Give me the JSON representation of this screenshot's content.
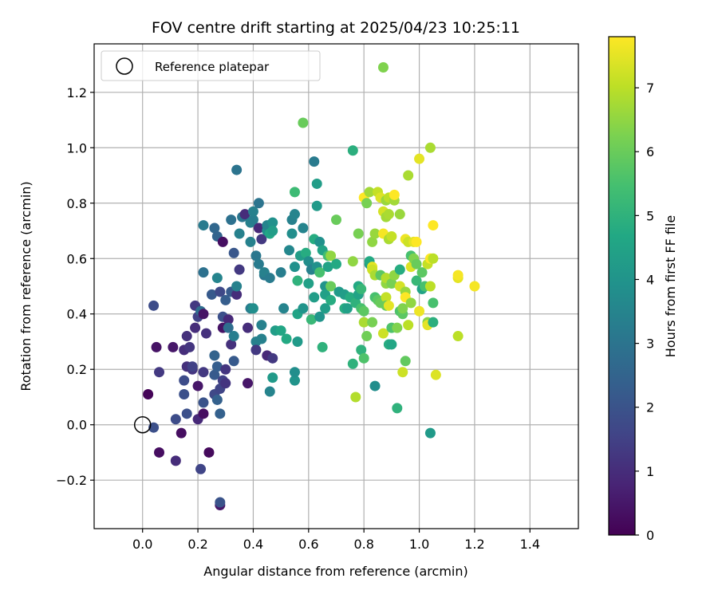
{
  "chart_data": {
    "type": "scatter",
    "title": "FOV centre drift starting at 2025/04/23 10:25:11",
    "xlabel": "Angular distance from reference (arcmin)",
    "ylabel": "Rotation from reference (arcmin)",
    "xlim": [
      -0.175,
      1.575
    ],
    "ylim": [
      -0.375,
      1.375
    ],
    "xticks": [
      0.0,
      0.2,
      0.4,
      0.6,
      0.8,
      1.0,
      1.2,
      1.4
    ],
    "xtick_labels": [
      "0.0",
      "0.2",
      "0.4",
      "0.6",
      "0.8",
      "1.0",
      "1.2",
      "1.4"
    ],
    "yticks": [
      -0.2,
      0.0,
      0.2,
      0.4,
      0.6,
      0.8,
      1.0,
      1.2
    ],
    "ytick_labels": [
      "−0.2",
      "0.0",
      "0.2",
      "0.4",
      "0.6",
      "0.8",
      "1.0",
      "1.2"
    ],
    "grid": true,
    "legend": {
      "placement": "top-left",
      "entries": [
        "Reference platepar"
      ]
    },
    "reference_point": {
      "x": 0.0,
      "y": 0.0
    },
    "colorbar": {
      "label": "Hours from first FF file",
      "colormap": "viridis",
      "range": [
        0,
        7.8
      ],
      "ticks": [
        0,
        1,
        2,
        3,
        4,
        5,
        6,
        7
      ],
      "tick_labels": [
        "0",
        "1",
        "2",
        "3",
        "4",
        "5",
        "6",
        "7"
      ]
    },
    "points": [
      [
        0.02,
        0.11,
        0.1
      ],
      [
        0.04,
        -0.01,
        1.9
      ],
      [
        0.05,
        0.28,
        0.4
      ],
      [
        0.06,
        -0.1,
        0.3
      ],
      [
        0.06,
        0.19,
        1.3
      ],
      [
        0.04,
        0.43,
        1.8
      ],
      [
        0.11,
        0.28,
        0.5
      ],
      [
        0.12,
        0.02,
        1.8
      ],
      [
        0.12,
        -0.13,
        1.0
      ],
      [
        0.14,
        -0.03,
        0.3
      ],
      [
        0.15,
        0.16,
        1.8
      ],
      [
        0.15,
        0.11,
        1.9
      ],
      [
        0.15,
        0.27,
        1.0
      ],
      [
        0.16,
        0.04,
        1.9
      ],
      [
        0.16,
        0.21,
        1.1
      ],
      [
        0.16,
        0.32,
        1.1
      ],
      [
        0.17,
        0.28,
        1.2
      ],
      [
        0.18,
        0.2,
        1.2
      ],
      [
        0.18,
        0.21,
        1.5
      ],
      [
        0.19,
        0.35,
        1.0
      ],
      [
        0.19,
        0.43,
        1.3
      ],
      [
        0.2,
        0.02,
        0.9
      ],
      [
        0.2,
        0.39,
        1.5
      ],
      [
        0.2,
        0.14,
        0.5
      ],
      [
        0.21,
        0.41,
        2.8
      ],
      [
        0.21,
        -0.16,
        1.6
      ],
      [
        0.22,
        0.04,
        0.3
      ],
      [
        0.22,
        0.08,
        2.0
      ],
      [
        0.22,
        0.55,
        2.9
      ],
      [
        0.22,
        0.72,
        3.2
      ],
      [
        0.22,
        0.4,
        0.4
      ],
      [
        0.22,
        0.19,
        1.3
      ],
      [
        0.23,
        0.33,
        1.1
      ],
      [
        0.24,
        -0.1,
        0.2
      ],
      [
        0.25,
        0.47,
        2.2
      ],
      [
        0.26,
        0.11,
        1.7
      ],
      [
        0.26,
        0.18,
        2.2
      ],
      [
        0.26,
        0.25,
        2.5
      ],
      [
        0.26,
        0.71,
        2.6
      ],
      [
        0.27,
        0.68,
        2.5
      ],
      [
        0.27,
        0.09,
        2.4
      ],
      [
        0.27,
        0.53,
        3.5
      ],
      [
        0.27,
        0.21,
        2.3
      ],
      [
        0.28,
        0.04,
        2.4
      ],
      [
        0.28,
        0.48,
        1.7
      ],
      [
        0.28,
        -0.29,
        0.5
      ],
      [
        0.28,
        -0.28,
        2.0
      ],
      [
        0.28,
        0.13,
        1.6
      ],
      [
        0.29,
        0.66,
        0.3
      ],
      [
        0.29,
        0.39,
        1.9
      ],
      [
        0.29,
        0.35,
        0.4
      ],
      [
        0.29,
        0.16,
        1.5
      ],
      [
        0.3,
        0.2,
        1.2
      ],
      [
        0.3,
        0.15,
        1.2
      ],
      [
        0.3,
        0.45,
        2.3
      ],
      [
        0.31,
        0.38,
        0.9
      ],
      [
        0.31,
        0.35,
        2.8
      ],
      [
        0.32,
        0.29,
        1.1
      ],
      [
        0.32,
        0.74,
        2.9
      ],
      [
        0.32,
        0.48,
        2.2
      ],
      [
        0.33,
        0.62,
        2.1
      ],
      [
        0.33,
        0.32,
        3.3
      ],
      [
        0.33,
        0.23,
        2.2
      ],
      [
        0.34,
        0.47,
        1.0
      ],
      [
        0.34,
        0.5,
        3.4
      ],
      [
        0.34,
        0.92,
        3.0
      ],
      [
        0.35,
        0.69,
        3.4
      ],
      [
        0.35,
        0.56,
        1.3
      ],
      [
        0.36,
        0.75,
        3.1
      ],
      [
        0.37,
        0.76,
        1.0
      ],
      [
        0.38,
        0.35,
        1.0
      ],
      [
        0.38,
        0.15,
        0.5
      ],
      [
        0.39,
        0.42,
        3.3
      ],
      [
        0.39,
        0.66,
        3.4
      ],
      [
        0.39,
        0.73,
        3.4
      ],
      [
        0.4,
        0.74,
        3.3
      ],
      [
        0.4,
        0.77,
        3.4
      ],
      [
        0.4,
        0.42,
        3.8
      ],
      [
        0.41,
        0.3,
        3.4
      ],
      [
        0.41,
        0.27,
        1.3
      ],
      [
        0.41,
        0.61,
        3.1
      ],
      [
        0.42,
        0.58,
        3.2
      ],
      [
        0.42,
        0.8,
        3.0
      ],
      [
        0.42,
        0.71,
        0.9
      ],
      [
        0.43,
        0.67,
        1.3
      ],
      [
        0.43,
        0.36,
        3.4
      ],
      [
        0.43,
        0.31,
        3.4
      ],
      [
        0.44,
        0.54,
        3.1
      ],
      [
        0.44,
        0.55,
        3.4
      ],
      [
        0.45,
        0.7,
        3.9
      ],
      [
        0.45,
        0.72,
        3.5
      ],
      [
        0.45,
        0.25,
        0.9
      ],
      [
        0.46,
        0.12,
        3.5
      ],
      [
        0.46,
        0.53,
        3.2
      ],
      [
        0.46,
        0.69,
        4.6
      ],
      [
        0.47,
        0.73,
        3.9
      ],
      [
        0.47,
        0.7,
        4.3
      ],
      [
        0.47,
        0.17,
        4.2
      ],
      [
        0.47,
        0.24,
        1.3
      ],
      [
        0.48,
        0.34,
        4.3
      ],
      [
        0.5,
        0.55,
        3.3
      ],
      [
        0.5,
        0.34,
        4.6
      ],
      [
        0.51,
        0.42,
        3.5
      ],
      [
        0.52,
        0.31,
        4.7
      ],
      [
        0.53,
        0.63,
        3.6
      ],
      [
        0.54,
        0.69,
        3.8
      ],
      [
        0.54,
        0.74,
        3.4
      ],
      [
        0.55,
        0.57,
        3.9
      ],
      [
        0.55,
        0.76,
        3.5
      ],
      [
        0.55,
        0.84,
        5.3
      ],
      [
        0.55,
        0.16,
        4.0
      ],
      [
        0.55,
        0.19,
        3.8
      ],
      [
        0.56,
        0.3,
        4.2
      ],
      [
        0.56,
        0.4,
        4.5
      ],
      [
        0.56,
        0.52,
        5.0
      ],
      [
        0.57,
        0.61,
        4.3
      ],
      [
        0.58,
        1.09,
        6.0
      ],
      [
        0.58,
        0.71,
        3.5
      ],
      [
        0.58,
        0.42,
        4.0
      ],
      [
        0.59,
        0.62,
        4.8
      ],
      [
        0.6,
        0.51,
        4.4
      ],
      [
        0.6,
        0.59,
        3.8
      ],
      [
        0.61,
        0.56,
        3.4
      ],
      [
        0.61,
        0.38,
        5.2
      ],
      [
        0.62,
        0.95,
        3.2
      ],
      [
        0.62,
        0.67,
        4.8
      ],
      [
        0.62,
        0.46,
        4.3
      ],
      [
        0.63,
        0.87,
        4.3
      ],
      [
        0.63,
        0.57,
        3.9
      ],
      [
        0.63,
        0.79,
        4.2
      ],
      [
        0.64,
        0.66,
        3.9
      ],
      [
        0.64,
        0.55,
        5.5
      ],
      [
        0.64,
        0.39,
        4.0
      ],
      [
        0.65,
        0.63,
        4.5
      ],
      [
        0.65,
        0.28,
        5.0
      ],
      [
        0.66,
        0.5,
        4.0
      ],
      [
        0.66,
        0.42,
        4.3
      ],
      [
        0.66,
        0.47,
        4.4
      ],
      [
        0.67,
        0.57,
        4.5
      ],
      [
        0.67,
        0.61,
        5.4
      ],
      [
        0.68,
        0.61,
        6.5
      ],
      [
        0.68,
        0.45,
        4.8
      ],
      [
        0.68,
        0.5,
        6.0
      ],
      [
        0.7,
        0.58,
        4.7
      ],
      [
        0.7,
        0.74,
        6.0
      ],
      [
        0.71,
        0.48,
        4.2
      ],
      [
        0.73,
        0.47,
        4.3
      ],
      [
        0.73,
        0.42,
        4.8
      ],
      [
        0.74,
        0.42,
        4.4
      ],
      [
        0.75,
        0.46,
        4.8
      ],
      [
        0.76,
        0.99,
        4.9
      ],
      [
        0.76,
        0.59,
        6.5
      ],
      [
        0.76,
        0.22,
        5.0
      ],
      [
        0.77,
        0.1,
        6.9
      ],
      [
        0.77,
        0.44,
        5.0
      ],
      [
        0.78,
        0.5,
        4.7
      ],
      [
        0.78,
        0.69,
        6.2
      ],
      [
        0.78,
        0.47,
        4.5
      ],
      [
        0.79,
        0.49,
        5.2
      ],
      [
        0.79,
        0.42,
        5.5
      ],
      [
        0.79,
        0.27,
        5.0
      ],
      [
        0.8,
        0.37,
        6.8
      ],
      [
        0.8,
        0.82,
        7.8
      ],
      [
        0.8,
        0.24,
        5.6
      ],
      [
        0.8,
        0.41,
        5.8
      ],
      [
        0.81,
        0.32,
        6.1
      ],
      [
        0.81,
        0.8,
        6.2
      ],
      [
        0.82,
        0.84,
        6.7
      ],
      [
        0.82,
        0.58,
        4.2
      ],
      [
        0.82,
        0.59,
        4.7
      ],
      [
        0.83,
        0.57,
        7.5
      ],
      [
        0.83,
        0.37,
        6.2
      ],
      [
        0.83,
        0.56,
        7.2
      ],
      [
        0.83,
        0.66,
        6.5
      ],
      [
        0.84,
        0.14,
        3.8
      ],
      [
        0.84,
        0.69,
        6.6
      ],
      [
        0.84,
        0.54,
        6.8
      ],
      [
        0.84,
        0.46,
        5.5
      ],
      [
        0.85,
        0.45,
        5.8
      ],
      [
        0.85,
        0.84,
        7.1
      ],
      [
        0.86,
        0.82,
        7.4
      ],
      [
        0.86,
        0.54,
        5.8
      ],
      [
        0.86,
        0.44,
        6.0
      ],
      [
        0.87,
        0.33,
        7.2
      ],
      [
        0.87,
        0.69,
        7.7
      ],
      [
        0.87,
        0.77,
        7.3
      ],
      [
        0.87,
        1.29,
        6.3
      ],
      [
        0.88,
        0.51,
        6.5
      ],
      [
        0.88,
        0.75,
        6.7
      ],
      [
        0.88,
        0.46,
        7.1
      ],
      [
        0.88,
        0.81,
        6.6
      ],
      [
        0.88,
        0.53,
        6.9
      ],
      [
        0.88,
        0.43,
        6.0
      ],
      [
        0.89,
        0.67,
        6.8
      ],
      [
        0.89,
        0.29,
        4.8
      ],
      [
        0.89,
        0.82,
        7.0
      ],
      [
        0.89,
        0.43,
        7.5
      ],
      [
        0.89,
        0.76,
        6.8
      ],
      [
        0.9,
        0.51,
        6.2
      ],
      [
        0.9,
        0.35,
        5.6
      ],
      [
        0.9,
        0.68,
        7.1
      ],
      [
        0.9,
        0.29,
        4.6
      ],
      [
        0.91,
        0.81,
        6.7
      ],
      [
        0.91,
        0.83,
        7.8
      ],
      [
        0.91,
        0.54,
        6.5
      ],
      [
        0.92,
        0.35,
        6.3
      ],
      [
        0.92,
        0.06,
        5.0
      ],
      [
        0.93,
        0.41,
        5.6
      ],
      [
        0.93,
        0.76,
        6.6
      ],
      [
        0.93,
        0.56,
        4.8
      ],
      [
        0.93,
        0.5,
        7.3
      ],
      [
        0.94,
        0.19,
        7.2
      ],
      [
        0.94,
        0.4,
        5.8
      ],
      [
        0.94,
        0.42,
        6.3
      ],
      [
        0.95,
        0.23,
        5.9
      ],
      [
        0.95,
        0.48,
        6.6
      ],
      [
        0.95,
        0.67,
        7.6
      ],
      [
        0.95,
        0.46,
        7.8
      ],
      [
        0.96,
        0.36,
        7.0
      ],
      [
        0.96,
        0.66,
        7.2
      ],
      [
        0.96,
        0.9,
        6.8
      ],
      [
        0.97,
        0.61,
        5.5
      ],
      [
        0.97,
        0.57,
        7.4
      ],
      [
        0.97,
        0.44,
        6.5
      ],
      [
        0.98,
        0.6,
        6.3
      ],
      [
        0.98,
        0.66,
        7.5
      ],
      [
        0.99,
        0.52,
        5.2
      ],
      [
        0.99,
        0.58,
        6.0
      ],
      [
        0.99,
        0.66,
        7.8
      ],
      [
        1.0,
        0.96,
        7.5
      ],
      [
        1.0,
        0.41,
        7.6
      ],
      [
        1.01,
        0.55,
        5.8
      ],
      [
        1.01,
        0.49,
        4.5
      ],
      [
        1.02,
        0.5,
        5.5
      ],
      [
        1.03,
        0.58,
        7.1
      ],
      [
        1.03,
        0.37,
        6.4
      ],
      [
        1.03,
        0.36,
        7.5
      ],
      [
        1.04,
        0.6,
        7.8
      ],
      [
        1.04,
        1.0,
        6.8
      ],
      [
        1.04,
        0.5,
        7.0
      ],
      [
        1.04,
        -0.03,
        4.2
      ],
      [
        1.05,
        0.44,
        5.5
      ],
      [
        1.05,
        0.37,
        4.9
      ],
      [
        1.05,
        0.6,
        7.0
      ],
      [
        1.05,
        0.72,
        7.8
      ],
      [
        1.06,
        0.18,
        7.4
      ],
      [
        1.14,
        0.32,
        7.0
      ],
      [
        1.14,
        0.53,
        7.5
      ],
      [
        1.14,
        0.54,
        7.7
      ],
      [
        1.2,
        0.5,
        7.7
      ]
    ]
  }
}
